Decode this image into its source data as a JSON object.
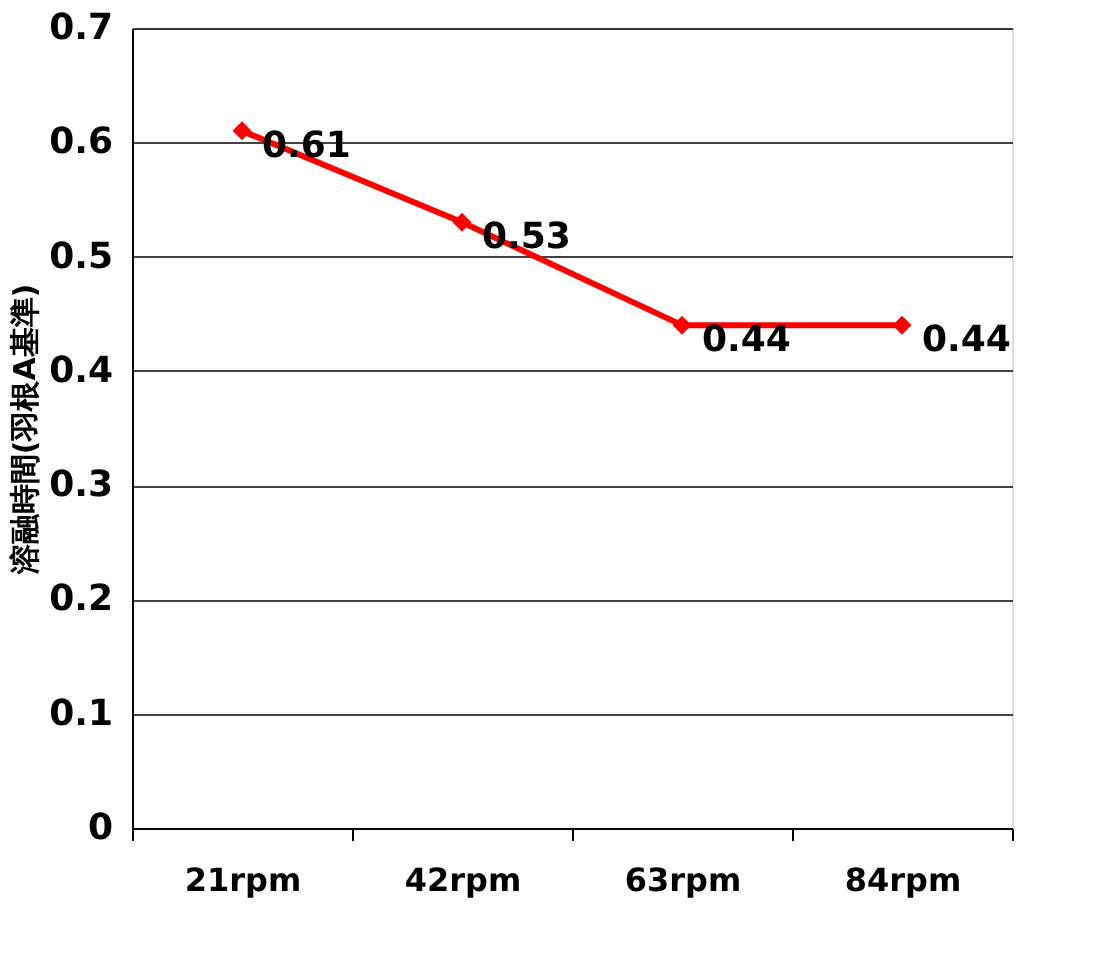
{
  "chart_data": {
    "type": "line",
    "ylabel": "溶融時間(羽根A基準)",
    "categories": [
      "21rpm",
      "42rpm",
      "63rpm",
      "84rpm"
    ],
    "series": [
      {
        "color": "#ff0000",
        "values": [
          0.61,
          0.53,
          0.44,
          0.44
        ]
      }
    ],
    "ylim": [
      0,
      0.7
    ],
    "yticks": [
      0,
      0.1,
      0.2,
      0.3,
      0.4,
      0.5,
      0.6,
      0.7
    ],
    "grid": "y",
    "marker": "diamond",
    "line_style": "solid",
    "data_labels": true
  }
}
